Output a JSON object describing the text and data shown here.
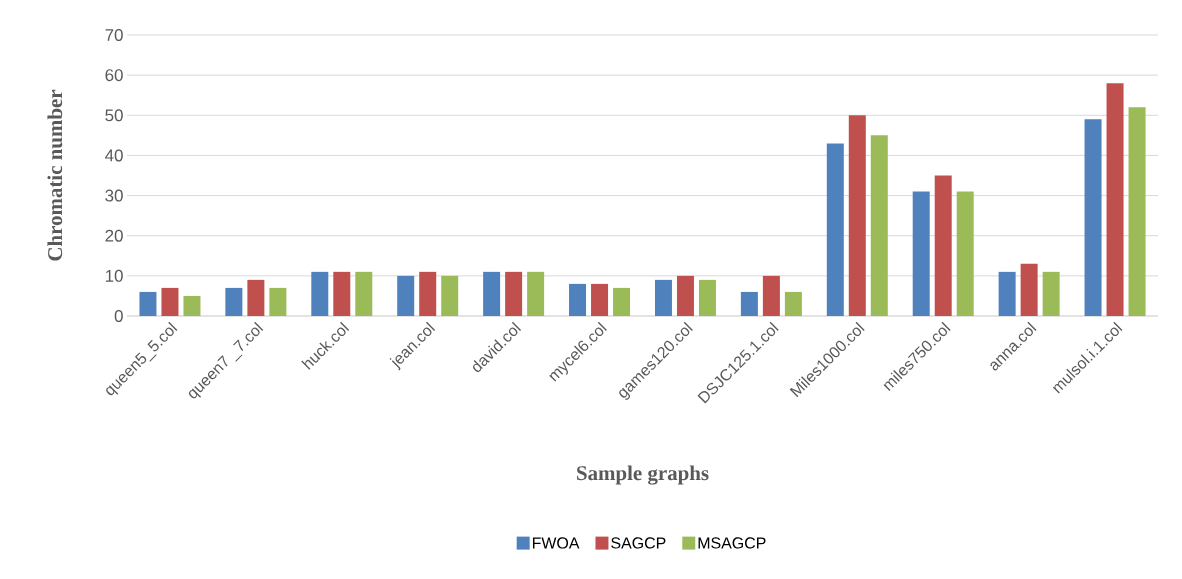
{
  "chart_data": {
    "type": "bar",
    "xlabel": "Sample graphs",
    "ylabel": "Chromatic number",
    "categories": [
      "queen5_5.col",
      "queen7 _7.col",
      "huck.col",
      "jean.col",
      "david.col",
      "mycel6.col",
      "games120.col",
      "DSJC125.1.col",
      "Miles1000.col",
      "miles750.col",
      "anna.col",
      "mulsol.i.1.col"
    ],
    "series": [
      {
        "name": "FWOA",
        "color": "#4f81bd",
        "values": [
          6,
          7,
          11,
          10,
          11,
          8,
          9,
          6,
          43,
          31,
          11,
          49
        ]
      },
      {
        "name": "SAGCP",
        "color": "#c0504d",
        "values": [
          7,
          9,
          11,
          11,
          11,
          8,
          10,
          10,
          50,
          35,
          13,
          58
        ]
      },
      {
        "name": "MSAGCP",
        "color": "#9bbb59",
        "values": [
          5,
          7,
          11,
          10,
          11,
          7,
          9,
          6,
          45,
          31,
          11,
          52
        ]
      }
    ],
    "ylim": [
      0,
      70
    ],
    "yticks": [
      0,
      10,
      20,
      30,
      40,
      50,
      60,
      70
    ],
    "grid": "y",
    "legend": "bottom"
  }
}
